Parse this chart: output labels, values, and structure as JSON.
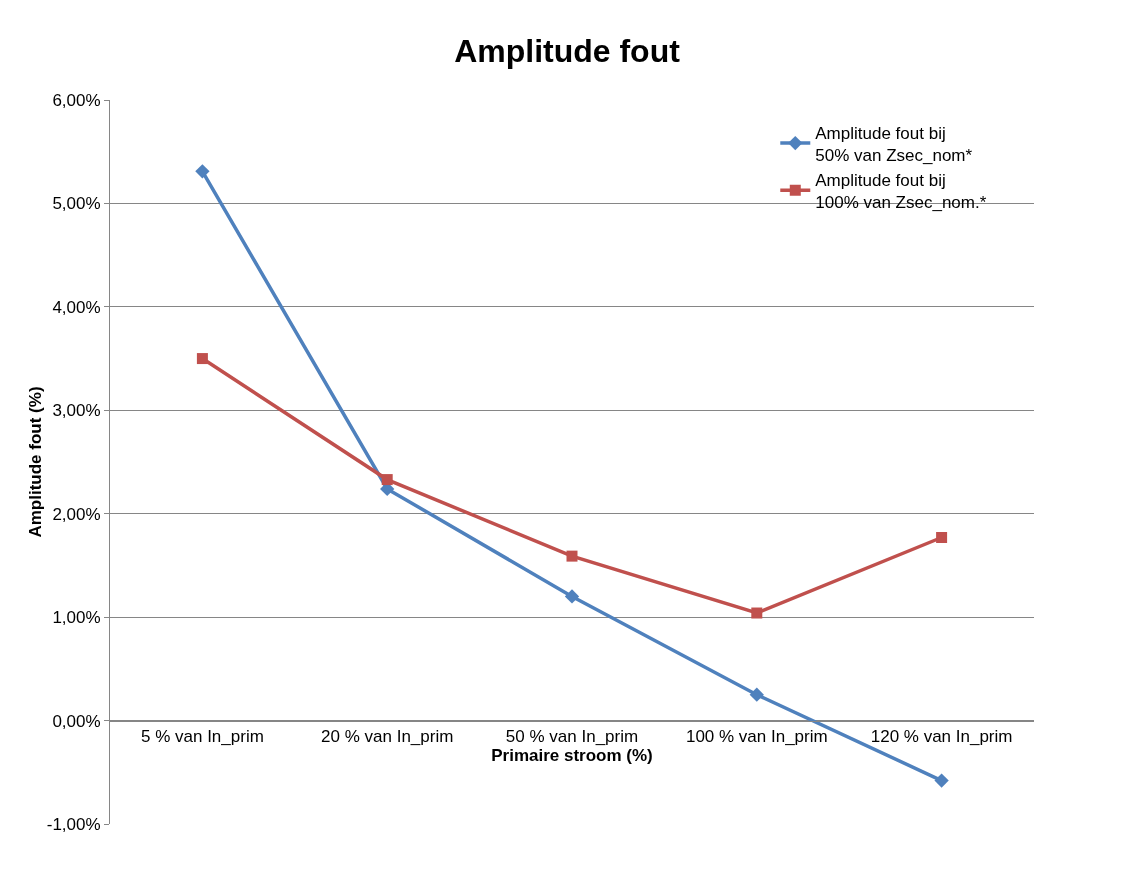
{
  "chart_data": {
    "type": "line",
    "title": "Amplitude fout",
    "xlabel": "Primaire stroom (%)",
    "ylabel": "Amplitude fout (%)",
    "categories": [
      "5 % van In_prim",
      "20 % van In_prim",
      "50 % van In_prim",
      "100 % van In_prim",
      "120 % van In_prim"
    ],
    "series": [
      {
        "name": "Amplitude fout bij 50% van Zsec_nom*",
        "color": "#4f81bd",
        "marker": "diamond",
        "values": [
          5.31,
          2.24,
          1.2,
          0.25,
          -0.58
        ]
      },
      {
        "name": "Amplitude fout bij 100% van Zsec_nom.*",
        "color": "#c0504d",
        "marker": "square",
        "values": [
          3.5,
          2.33,
          1.59,
          1.04,
          1.77
        ]
      }
    ],
    "ylim": [
      -1,
      6
    ],
    "yticks": [
      {
        "value": -1,
        "label": "-1,00%"
      },
      {
        "value": 0,
        "label": "0,00%"
      },
      {
        "value": 1,
        "label": "1,00%"
      },
      {
        "value": 2,
        "label": "2,00%"
      },
      {
        "value": 3,
        "label": "3,00%"
      },
      {
        "value": 4,
        "label": "4,00%"
      },
      {
        "value": 5,
        "label": "5,00%"
      },
      {
        "value": 6,
        "label": "6,00%"
      }
    ],
    "grid": "y",
    "legend": "top right",
    "line_style": "solid"
  }
}
